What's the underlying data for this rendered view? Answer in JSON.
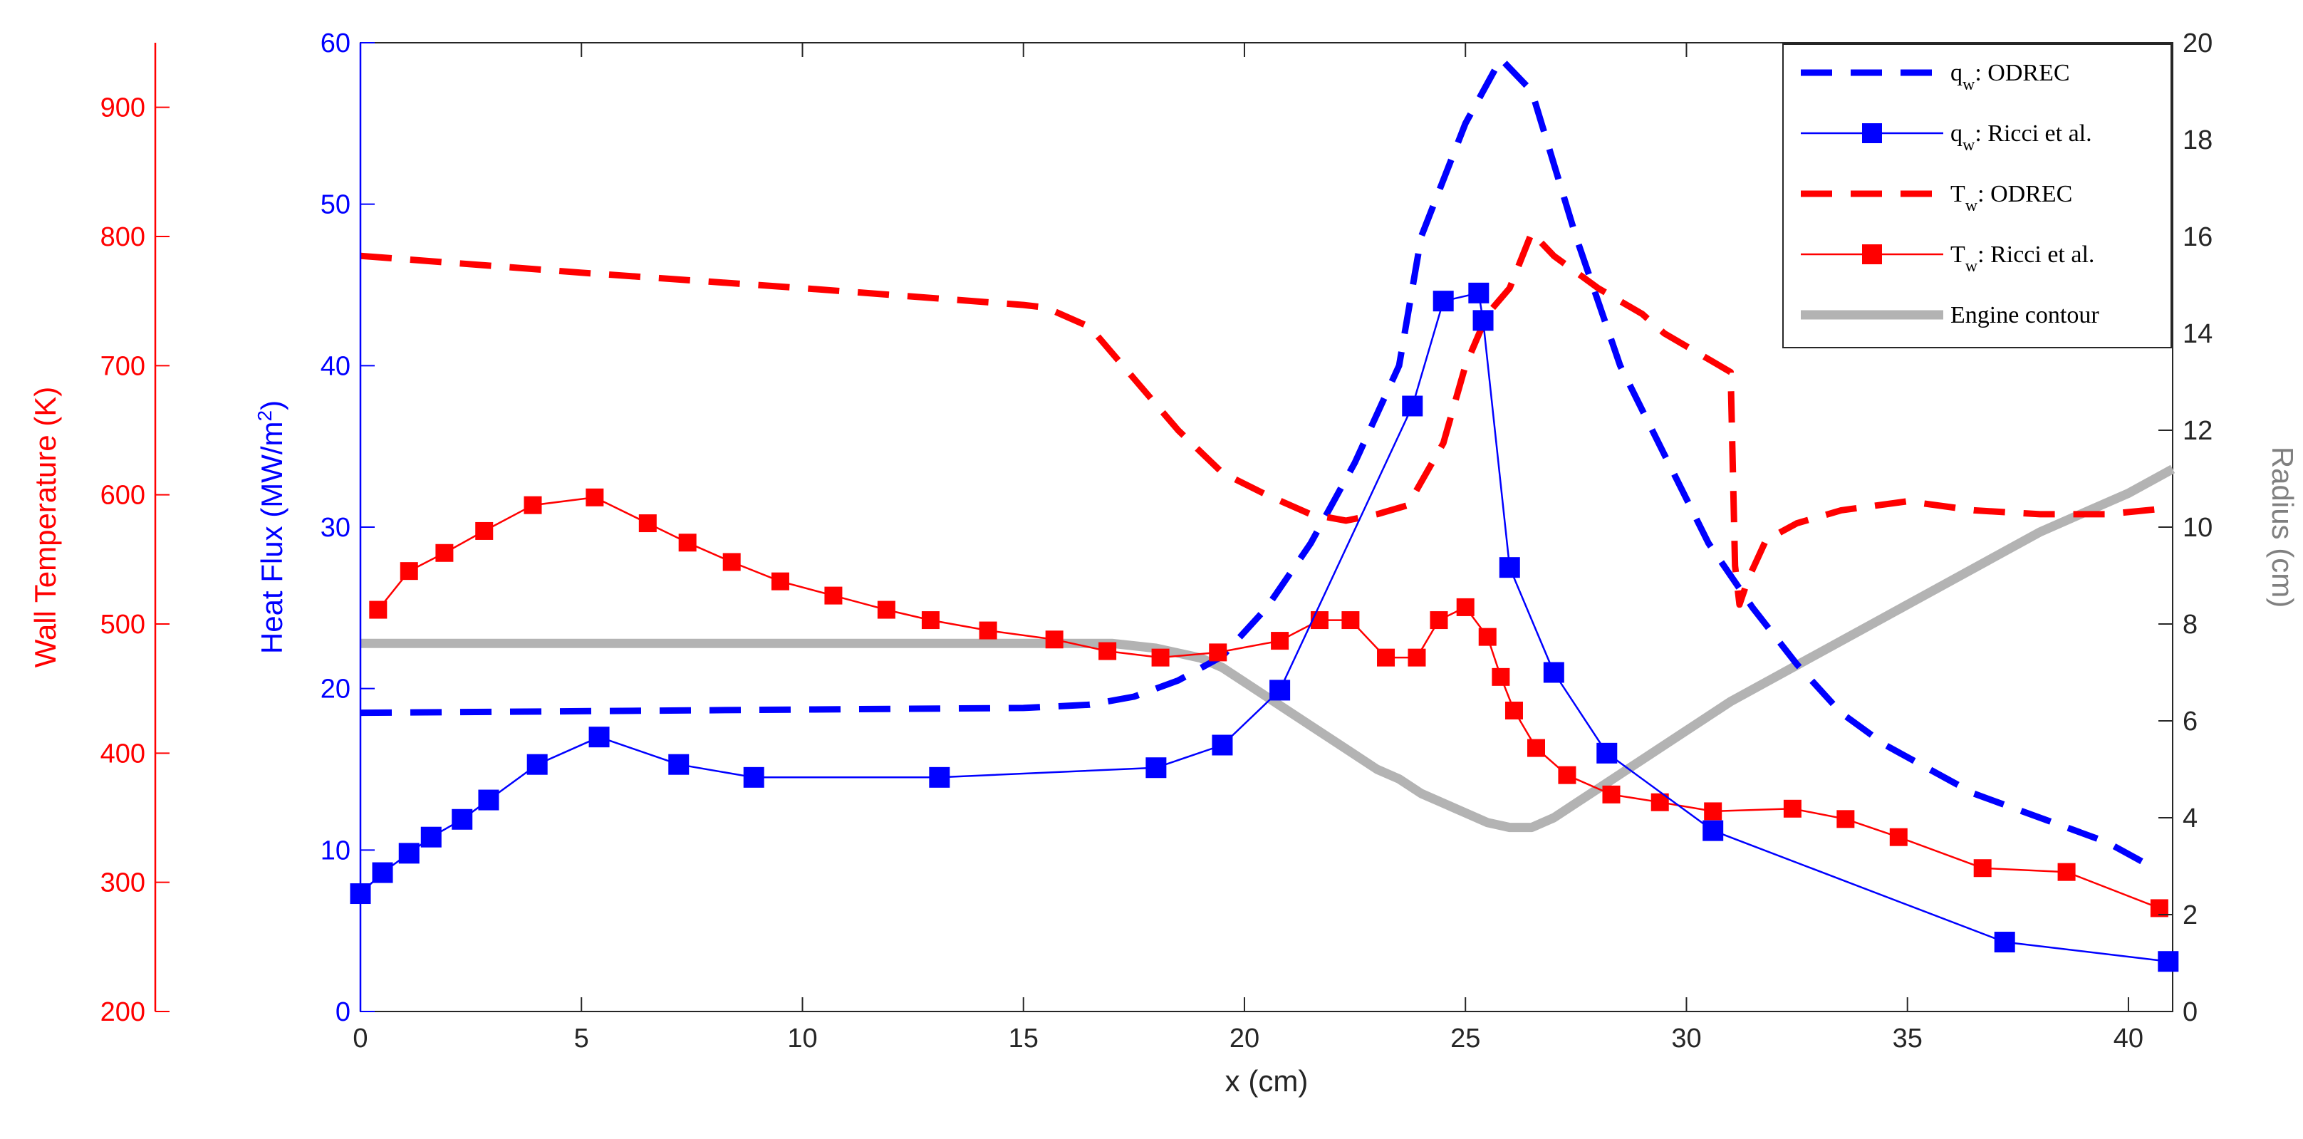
{
  "colors": {
    "blue": "#0000ff",
    "red": "#ff0000",
    "gray": "#b3b3b3",
    "axis": "#262626",
    "temp_axis": "#ff0000",
    "flux_axis": "#0000ff"
  },
  "chart_data": {
    "type": "line",
    "xlabel": "x (cm)",
    "ylabel_flux": "Heat Flux (MW/m",
    "ylabel_flux_sup": "2",
    "ylabel_flux_close": ")",
    "ylabel_temp": "Wall Temperature (K)",
    "ylabel_radius": "Radius (cm)",
    "xlim": [
      0,
      41
    ],
    "ylim_flux": [
      0,
      60
    ],
    "ylim_temp": [
      200,
      950
    ],
    "ylim_radius": [
      0,
      20
    ],
    "x_ticks": [
      0,
      5,
      10,
      15,
      20,
      25,
      30,
      35,
      40
    ],
    "flux_ticks": [
      0,
      10,
      20,
      30,
      40,
      50,
      60
    ],
    "temp_ticks": [
      200,
      300,
      400,
      500,
      600,
      700,
      800,
      900
    ],
    "radius_ticks": [
      0,
      2,
      4,
      6,
      8,
      10,
      12,
      14,
      16,
      18,
      20
    ],
    "legend_position": "top-right",
    "series": [
      {
        "name": "qw: ODREC",
        "legend_main": "q",
        "legend_sub": "w",
        "legend_rest": ": ODREC",
        "axis": "flux",
        "style": "dashed",
        "color": "#0000ff",
        "marker": "none",
        "x": [
          0,
          5,
          10,
          15,
          16.5,
          17.5,
          18.5,
          19.5,
          20.5,
          21.5,
          22.5,
          23.5,
          24,
          25,
          25.8,
          26.5,
          27.5,
          28.5,
          29.5,
          30.5,
          31.5,
          32.5,
          33.5,
          34.5,
          35.5,
          36.5,
          37.5,
          38.5,
          39.5,
          40.5
        ],
        "y": [
          18.5,
          18.6,
          18.7,
          18.8,
          19,
          19.5,
          20.5,
          22,
          25,
          29,
          34,
          40,
          48,
          55,
          59,
          57,
          48,
          40,
          34.5,
          29,
          25,
          21.5,
          18.5,
          16.5,
          15,
          13.5,
          12.5,
          11.5,
          10.5,
          9
        ]
      },
      {
        "name": "qw: Ricci et al.",
        "legend_main": "q",
        "legend_sub": "w",
        "legend_rest": ": Ricci et al.",
        "axis": "flux",
        "style": "solid",
        "color": "#0000ff",
        "marker": "square",
        "x": [
          0,
          0.5,
          1.1,
          1.6,
          2.3,
          2.9,
          4,
          5.4,
          7.2,
          8.9,
          13.1,
          18,
          19.5,
          20.8,
          23.8,
          24.5,
          25.3,
          25.4,
          26,
          27,
          28.2,
          30.6,
          37.2,
          40.9
        ],
        "y": [
          7.3,
          8.6,
          9.8,
          10.8,
          11.9,
          13.1,
          15.3,
          17,
          15.3,
          14.5,
          14.5,
          15.1,
          16.5,
          19.9,
          37.5,
          44,
          44.5,
          42.8,
          27.5,
          21,
          16,
          11.2,
          4.3,
          3.1
        ]
      },
      {
        "name": "Tw: ODREC",
        "legend_main": "T",
        "legend_sub": "w",
        "legend_rest": ": ODREC",
        "axis": "temp",
        "style": "dashed",
        "color": "#ff0000",
        "marker": "none",
        "x": [
          0,
          5,
          10,
          15,
          15.5,
          16.5,
          17.5,
          18.5,
          19.5,
          20.5,
          21.5,
          22.3,
          23,
          23.7,
          24.5,
          25,
          25.5,
          26,
          26.5,
          27,
          28,
          29,
          29.5,
          30.5,
          31,
          31.1,
          31.2,
          31.4,
          31.8,
          32.5,
          33.5,
          35,
          36.5,
          38,
          39.5,
          41
        ],
        "y": [
          785,
          772,
          760,
          747,
          745,
          730,
          690,
          650,
          617,
          600,
          585,
          580,
          585,
          592,
          640,
          700,
          740,
          760,
          803,
          785,
          760,
          740,
          725,
          705,
          695,
          545,
          515,
          535,
          565,
          578,
          588,
          595,
          588,
          585,
          585,
          590
        ]
      },
      {
        "name": "Tw: Ricci et al.",
        "legend_main": "T",
        "legend_sub": "w",
        "legend_rest": ": Ricci et al.",
        "axis": "temp",
        "style": "solid",
        "color": "#ff0000",
        "marker": "square",
        "x": [
          0.4,
          1.1,
          1.9,
          2.8,
          3.9,
          5.3,
          6.5,
          7.4,
          8.4,
          9.5,
          10.7,
          11.9,
          12.9,
          14.2,
          15.7,
          16.9,
          18.1,
          19.4,
          20.8,
          21.7,
          22.4,
          23.2,
          23.9,
          24.4,
          25,
          25.5,
          25.8,
          26.1,
          26.6,
          27.3,
          28.3,
          29.4,
          30.6,
          32.4,
          33.6,
          34.8,
          36.7,
          38.6,
          40.7
        ],
        "y": [
          511,
          541,
          555,
          572,
          592,
          598,
          578,
          563,
          548,
          533,
          522,
          511,
          503,
          495,
          488,
          479,
          474,
          478,
          487,
          503,
          503,
          474,
          474,
          503,
          513,
          490,
          459,
          433,
          404,
          383,
          368,
          362,
          355,
          357,
          349,
          335,
          311,
          308,
          280
        ]
      },
      {
        "name": "Engine contour",
        "legend_main": "Engine contour",
        "legend_sub": "",
        "legend_rest": "",
        "axis": "radius",
        "style": "solid-thick",
        "color": "#b3b3b3",
        "marker": "none",
        "x": [
          0,
          5,
          10,
          15,
          17,
          18,
          19,
          19.5,
          20,
          20.5,
          21,
          21.5,
          22,
          22.5,
          23,
          23.5,
          24,
          24.5,
          25,
          25.5,
          26,
          26.5,
          27,
          27.5,
          28,
          28.5,
          29,
          30,
          31,
          32,
          33,
          34,
          35,
          36,
          37,
          38,
          39,
          40,
          41
        ],
        "y": [
          7.6,
          7.6,
          7.6,
          7.6,
          7.6,
          7.5,
          7.3,
          7.1,
          6.8,
          6.5,
          6.2,
          5.9,
          5.6,
          5.3,
          5.0,
          4.8,
          4.5,
          4.3,
          4.1,
          3.9,
          3.8,
          3.8,
          4.0,
          4.3,
          4.6,
          4.9,
          5.2,
          5.8,
          6.4,
          6.9,
          7.4,
          7.9,
          8.4,
          8.9,
          9.4,
          9.9,
          10.3,
          10.7,
          11.2
        ]
      }
    ]
  }
}
